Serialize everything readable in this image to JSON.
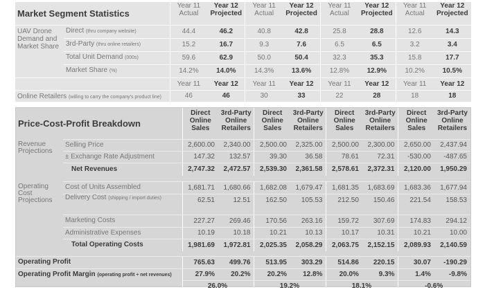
{
  "market": {
    "title": "Market Segment Statistics",
    "header": [
      [
        "Year 11",
        "Actual"
      ],
      [
        "Year 12",
        "Projected"
      ],
      [
        "Year 11",
        "Actual"
      ],
      [
        "Year 12",
        "Projected"
      ],
      [
        "Year 11",
        "Actual"
      ],
      [
        "Year 12",
        "Projected"
      ],
      [
        "Year 11",
        "Actual"
      ],
      [
        "Year 12",
        "Projected"
      ]
    ],
    "group_label": "UAV Drone Demand and Market Share",
    "rows": [
      {
        "label": "Direct",
        "note": "(thru company website)",
        "values": [
          "44.4",
          "46.2",
          "40.8",
          "42.8",
          "25.8",
          "28.8",
          "12.6",
          "14.3"
        ]
      },
      {
        "label": "3rd-Party",
        "note": "(thru online retailers)",
        "values": [
          "15.2",
          "16.7",
          "9.3",
          "7.6",
          "6.5",
          "6.5",
          "3.2",
          "3.4"
        ]
      },
      {
        "label": "Total Unit Demand",
        "note": "(000s)",
        "values": [
          "59.6",
          "62.9",
          "50.0",
          "50.4",
          "32.3",
          "35.3",
          "15.8",
          "17.7"
        ]
      },
      {
        "label": "Market Share",
        "note": "(%)",
        "values": [
          "14.2%",
          "14.0%",
          "14.3%",
          "13.6%",
          "12.8%",
          "12.9%",
          "10.2%",
          "10.5%"
        ]
      }
    ],
    "year_header": [
      "Year 11",
      "Year 12",
      "Year 11",
      "Year 12",
      "Year 11",
      "Year 12",
      "Year 11",
      "Year 12"
    ],
    "retailers": {
      "label": "Online Retailers",
      "note": "(willing to carry the company's product line)",
      "values": [
        "46",
        "46",
        "30",
        "33",
        "22",
        "28",
        "18",
        "18"
      ]
    }
  },
  "pcp": {
    "title": "Price-Cost-Profit Breakdown",
    "header": [
      [
        "Direct",
        "Online",
        "Sales"
      ],
      [
        "3rd-Party",
        "Online",
        "Retailers"
      ],
      [
        "Direct",
        "Online",
        "Sales"
      ],
      [
        "3rd-Party",
        "Online",
        "Retailers"
      ],
      [
        "Direct",
        "Online",
        "Sales"
      ],
      [
        "3rd-Party",
        "Online",
        "Retailers"
      ],
      [
        "Direct",
        "Online",
        "Sales"
      ],
      [
        "3rd-Party",
        "Online",
        "Retailers"
      ]
    ],
    "revenue_label": "Revenue Projections",
    "revenue_rows": [
      {
        "label": "Selling Price",
        "values": [
          "2,600.00",
          "2,340.00",
          "2,500.00",
          "2,325.00",
          "2,500.00",
          "2,300.00",
          "2,650.00",
          "2,437.94"
        ]
      },
      {
        "label": "± Exchange Rate Adjustment",
        "values": [
          "147.32",
          "132.57",
          "39.30",
          "36.58",
          "78.61",
          "72.31",
          "-530.00",
          "-487.65"
        ]
      },
      {
        "label": "Net Revenues",
        "values": [
          "2,747.32",
          "2,472.57",
          "2,539.30",
          "2,361.58",
          "2,578.61",
          "2,372.31",
          "2,120.00",
          "1,950.29"
        ],
        "bold": true
      }
    ],
    "cost_label": "Operating Cost Projections",
    "cost_rows": [
      {
        "label": "Cost of Units Assembled",
        "values": [
          "1,681.71",
          "1,680.66",
          "1,682.08",
          "1,679.47",
          "1,681.35",
          "1,683.69",
          "1,683.36",
          "1,677.94"
        ]
      },
      {
        "label": "Delivery Cost",
        "note": "(shipping / import duties)",
        "values": [
          "62.51",
          "12.51",
          "162.50",
          "105.53",
          "212.50",
          "150.46",
          "221.54",
          "158.53"
        ]
      },
      {
        "label": "Marketing Costs",
        "values": [
          "227.27",
          "269.46",
          "170.56",
          "263.16",
          "159.72",
          "307.69",
          "174.83",
          "294.12"
        ]
      },
      {
        "label": "Administrative Expenses",
        "values": [
          "10.19",
          "10.18",
          "10.21",
          "10.13",
          "10.17",
          "10.31",
          "10.21",
          "10.00"
        ]
      },
      {
        "label": "Total Operating Costs",
        "values": [
          "1,981.69",
          "1,972.81",
          "2,025.35",
          "2,058.29",
          "2,063.75",
          "2,152.15",
          "2,089.93",
          "2,140.59"
        ],
        "bold": true
      }
    ],
    "profit": {
      "label": "Operating Profit",
      "values": [
        "765.63",
        "499.76",
        "513.95",
        "303.29",
        "514.86",
        "220.15",
        "30.07",
        "-190.29"
      ]
    },
    "margin": {
      "label": "Operating Profit Margin",
      "note": "(operating profit ÷ net revenues)",
      "values": [
        "27.9%",
        "20.2%",
        "20.2%",
        "12.8%",
        "20.0%",
        "9.3%",
        "1.4%",
        "-9.8%"
      ],
      "combined": [
        "26.0%",
        "19.2%",
        "18.1%",
        "-0.6%"
      ]
    }
  }
}
